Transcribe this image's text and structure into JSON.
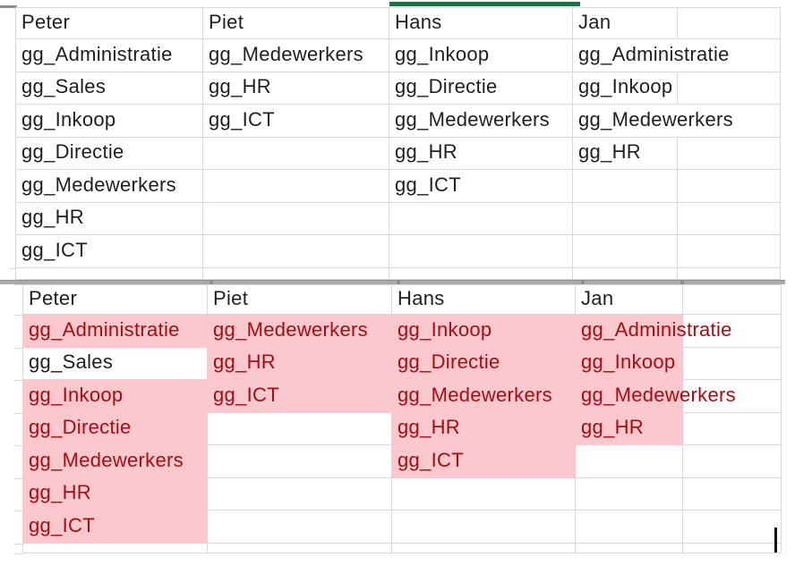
{
  "colors": {
    "grid": "#D9D9D9",
    "highlight_fill": "#FBC8CE",
    "highlight_text": "#A50D12",
    "text": "#1F1F1F",
    "selection_green": "#1F7145",
    "seam": "#ABABAB",
    "seam_dark": "#8F8F8F",
    "cursor": "#111111"
  },
  "top_table": {
    "headers": [
      "Peter",
      "Piet",
      "Hans",
      "Jan"
    ],
    "rows": [
      [
        "gg_Administratie",
        "gg_Medewerkers",
        "gg_Inkoop",
        "gg_Administratie"
      ],
      [
        "gg_Sales",
        "gg_HR",
        "gg_Directie",
        "gg_Inkoop"
      ],
      [
        "gg_Inkoop",
        "gg_ICT",
        "gg_Medewerkers",
        "gg_Medewerkers"
      ],
      [
        "gg_Directie",
        "",
        "gg_HR",
        "gg_HR"
      ],
      [
        "gg_Medewerkers",
        "",
        "gg_ICT",
        ""
      ],
      [
        "gg_HR",
        "",
        "",
        ""
      ],
      [
        "gg_ICT",
        "",
        "",
        ""
      ]
    ]
  },
  "bottom_table": {
    "headers": [
      "Peter",
      "Piet",
      "Hans",
      "Jan"
    ],
    "rows": [
      [
        "gg_Administratie",
        "gg_Medewerkers",
        "gg_Inkoop",
        "gg_Administratie"
      ],
      [
        "gg_Sales",
        "gg_HR",
        "gg_Directie",
        "gg_Inkoop"
      ],
      [
        "gg_Inkoop",
        "gg_ICT",
        "gg_Medewerkers",
        "gg_Medewerkers"
      ],
      [
        "gg_Directie",
        "",
        "gg_HR",
        "gg_HR"
      ],
      [
        "gg_Medewerkers",
        "",
        "gg_ICT",
        ""
      ],
      [
        "gg_HR",
        "",
        "",
        ""
      ],
      [
        "gg_ICT",
        "",
        "",
        ""
      ]
    ],
    "highlights": [
      [
        1,
        1,
        1,
        1
      ],
      [
        0,
        1,
        1,
        1
      ],
      [
        1,
        1,
        1,
        1
      ],
      [
        1,
        0,
        1,
        1
      ],
      [
        1,
        0,
        1,
        0
      ],
      [
        1,
        0,
        0,
        0
      ],
      [
        1,
        0,
        0,
        0
      ]
    ]
  }
}
